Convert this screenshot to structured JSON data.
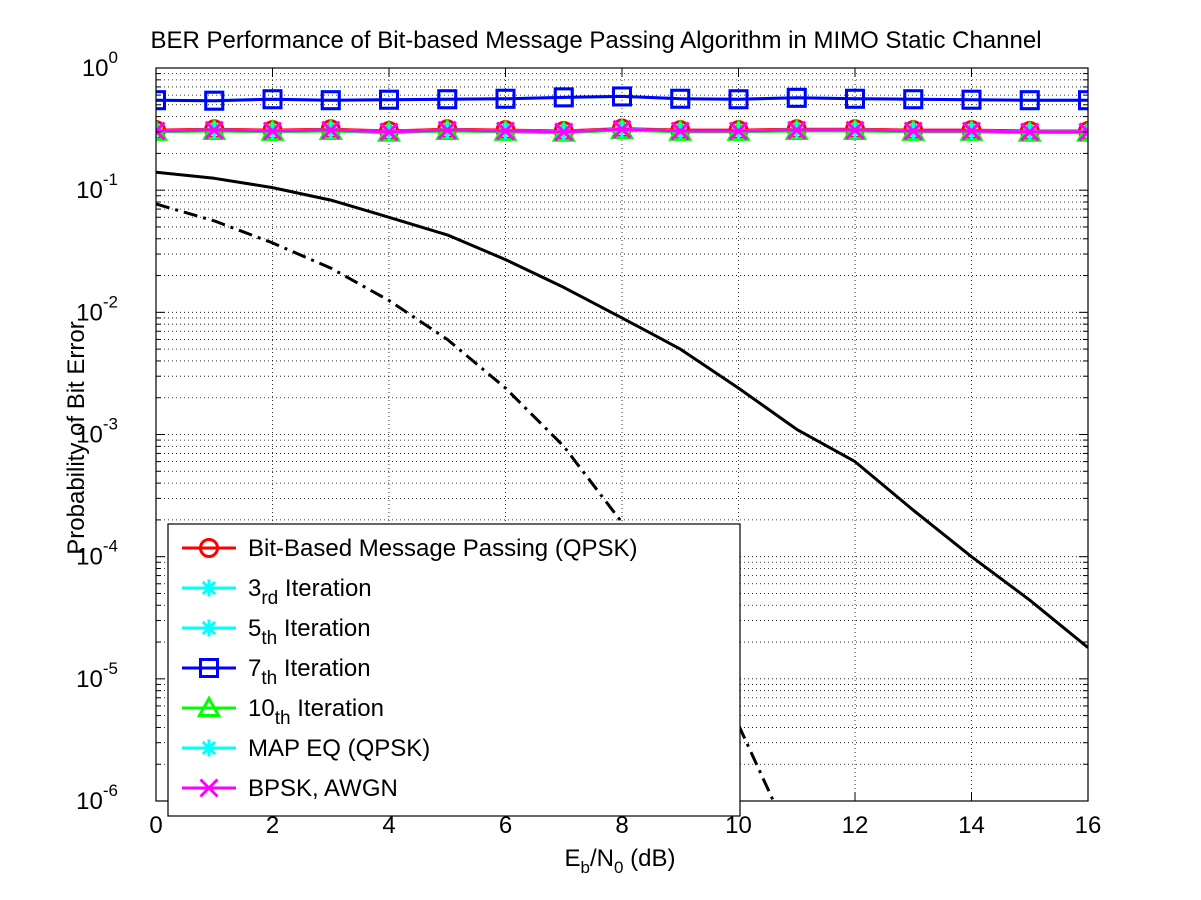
{
  "chart_data": {
    "type": "line",
    "title": "BER Performance of Bit-based Message Passing Algorithm in MIMO Static Channel",
    "xlabel": {
      "main": "E",
      "sub1": "b",
      "mid": "/N",
      "sub2": "0",
      "tail": " (dB)"
    },
    "ylabel": "Probability of Bit Error",
    "xlim": [
      0,
      16
    ],
    "ylim": [
      1e-06,
      1
    ],
    "yscale": "log",
    "grid": true,
    "legend_position": "bottom-left",
    "x_ticks": [
      "0",
      "2",
      "4",
      "6",
      "8",
      "10",
      "12",
      "14",
      "16"
    ],
    "y_ticks": [
      {
        "base": "10",
        "exp": "0",
        "value": 1
      },
      {
        "base": "10",
        "exp": "-1",
        "value": 0.1
      },
      {
        "base": "10",
        "exp": "-2",
        "value": 0.01
      },
      {
        "base": "10",
        "exp": "-3",
        "value": 0.001
      },
      {
        "base": "10",
        "exp": "-4",
        "value": 0.0001
      },
      {
        "base": "10",
        "exp": "-5",
        "value": 1e-05
      },
      {
        "base": "10",
        "exp": "-6",
        "value": 1e-06
      }
    ],
    "series": [
      {
        "key": "s_bbmp",
        "name": "Bit-Based Message Passing (QPSK)",
        "name_sub": "",
        "name_tail": "",
        "color": "#ff0000",
        "marker": "circle",
        "dash": "solid",
        "lw": 3,
        "in_legend": true,
        "x": [
          0,
          1,
          2,
          3,
          4,
          5,
          6,
          7,
          8,
          9,
          10,
          11,
          12,
          13,
          14,
          15,
          16
        ],
        "y": [
          0.31,
          0.315,
          0.31,
          0.315,
          0.305,
          0.315,
          0.31,
          0.305,
          0.32,
          0.31,
          0.31,
          0.315,
          0.315,
          0.31,
          0.31,
          0.305,
          0.305
        ]
      },
      {
        "key": "s_it3",
        "name": "3",
        "name_sub": "rd",
        "name_tail": " Iteration",
        "color": "#00ffff",
        "marker": "star",
        "dash": "solid",
        "lw": 3,
        "in_legend": true,
        "x": [
          0,
          1,
          2,
          3,
          4,
          5,
          6,
          7,
          8,
          9,
          10,
          11,
          12,
          13,
          14,
          15,
          16
        ],
        "y": [
          0.305,
          0.31,
          0.305,
          0.31,
          0.3,
          0.31,
          0.305,
          0.3,
          0.315,
          0.305,
          0.305,
          0.31,
          0.31,
          0.305,
          0.305,
          0.3,
          0.3
        ]
      },
      {
        "key": "s_it5",
        "name": "5",
        "name_sub": "th",
        "name_tail": " Iteration",
        "color": "#00ffff",
        "marker": "star",
        "dash": "solid",
        "lw": 3,
        "in_legend": true,
        "x": [
          0,
          1,
          2,
          3,
          4,
          5,
          6,
          7,
          8,
          9,
          10,
          11,
          12,
          13,
          14,
          15,
          16
        ],
        "y": [
          0.305,
          0.31,
          0.305,
          0.31,
          0.3,
          0.31,
          0.305,
          0.3,
          0.315,
          0.305,
          0.305,
          0.31,
          0.31,
          0.305,
          0.305,
          0.3,
          0.3
        ]
      },
      {
        "key": "s_it7_cyan",
        "name": "",
        "name_sub": "",
        "name_tail": "",
        "color": "#00ffff",
        "marker": "square",
        "dash": "solid",
        "lw": 3,
        "in_legend": false,
        "x": [
          0,
          1,
          2,
          3,
          4,
          5,
          6,
          7,
          8,
          9,
          10,
          11,
          12,
          13,
          14,
          15,
          16
        ],
        "y": [
          0.545,
          0.54,
          0.555,
          0.545,
          0.55,
          0.555,
          0.56,
          0.575,
          0.585,
          0.56,
          0.555,
          0.57,
          0.56,
          0.555,
          0.55,
          0.545,
          0.545
        ]
      },
      {
        "key": "s_it7",
        "name": "7",
        "name_sub": "th",
        "name_tail": " Iteration",
        "color": "#0000ff",
        "marker": "square",
        "dash": "solid",
        "lw": 3,
        "in_legend": true,
        "x": [
          0,
          1,
          2,
          3,
          4,
          5,
          6,
          7,
          8,
          9,
          10,
          11,
          12,
          13,
          14,
          15,
          16
        ],
        "y": [
          0.545,
          0.54,
          0.555,
          0.545,
          0.55,
          0.555,
          0.56,
          0.575,
          0.585,
          0.56,
          0.555,
          0.57,
          0.56,
          0.555,
          0.55,
          0.545,
          0.545
        ]
      },
      {
        "key": "s_it10",
        "name": "10",
        "name_sub": "th",
        "name_tail": " Iteration",
        "color": "#00ff00",
        "marker": "triangle",
        "dash": "solid",
        "lw": 3,
        "in_legend": true,
        "x": [
          0,
          1,
          2,
          3,
          4,
          5,
          6,
          7,
          8,
          9,
          10,
          11,
          12,
          13,
          14,
          15,
          16
        ],
        "y": [
          0.3,
          0.305,
          0.3,
          0.305,
          0.295,
          0.305,
          0.3,
          0.295,
          0.31,
          0.3,
          0.3,
          0.305,
          0.305,
          0.3,
          0.3,
          0.295,
          0.295
        ]
      },
      {
        "key": "s_mapeq",
        "name": "MAP EQ (QPSK)",
        "name_sub": "",
        "name_tail": "",
        "color": "#00ffff",
        "marker": "star",
        "dash": "solid",
        "lw": 3,
        "in_legend": true,
        "x": [
          0,
          1,
          2,
          3,
          4,
          5,
          6,
          7,
          8,
          9,
          10,
          11,
          12,
          13,
          14,
          15,
          16
        ],
        "y": [
          0.305,
          0.31,
          0.305,
          0.31,
          0.3,
          0.31,
          0.305,
          0.3,
          0.315,
          0.305,
          0.305,
          0.31,
          0.31,
          0.305,
          0.305,
          0.3,
          0.3
        ]
      },
      {
        "key": "s_bpsk",
        "name": "BPSK, AWGN",
        "name_sub": "",
        "name_tail": "",
        "color": "#ff00ff",
        "marker": "x",
        "dash": "solid",
        "lw": 3,
        "in_legend": true,
        "x": [
          0,
          1,
          2,
          3,
          4,
          5,
          6,
          7,
          8,
          9,
          10,
          11,
          12,
          13,
          14,
          15,
          16
        ],
        "y": [
          0.305,
          0.31,
          0.305,
          0.31,
          0.3,
          0.31,
          0.305,
          0.3,
          0.315,
          0.305,
          0.305,
          0.31,
          0.31,
          0.305,
          0.305,
          0.3,
          0.3
        ]
      },
      {
        "key": "s_black_solid",
        "name": "",
        "name_sub": "",
        "name_tail": "",
        "color": "#000000",
        "marker": "none",
        "dash": "solid",
        "lw": 3,
        "in_legend": false,
        "x": [
          0,
          1,
          2,
          3,
          4,
          5,
          6,
          7,
          8,
          9,
          10,
          11,
          12,
          13,
          14,
          15,
          16
        ],
        "y": [
          0.14,
          0.125,
          0.105,
          0.083,
          0.06,
          0.043,
          0.027,
          0.016,
          0.009,
          0.005,
          0.0024,
          0.0011,
          0.0006,
          0.00024,
          0.0001,
          4.4e-05,
          1.8e-05
        ]
      },
      {
        "key": "s_black_dashdot",
        "name": "",
        "name_sub": "",
        "name_tail": "",
        "color": "#000000",
        "marker": "none",
        "dash": "dashdot",
        "lw": 3,
        "in_legend": false,
        "x": [
          0,
          1,
          2,
          3,
          4,
          5,
          6,
          7,
          8,
          9,
          10,
          10.6
        ],
        "y": [
          0.077,
          0.056,
          0.037,
          0.023,
          0.0125,
          0.006,
          0.0024,
          0.0008,
          0.00019,
          3.5e-05,
          4.2e-06,
          1e-06
        ]
      }
    ],
    "legend_order": [
      "s_bbmp",
      "s_it3",
      "s_it5",
      "s_it7",
      "s_it10",
      "s_mapeq",
      "s_bpsk"
    ]
  }
}
